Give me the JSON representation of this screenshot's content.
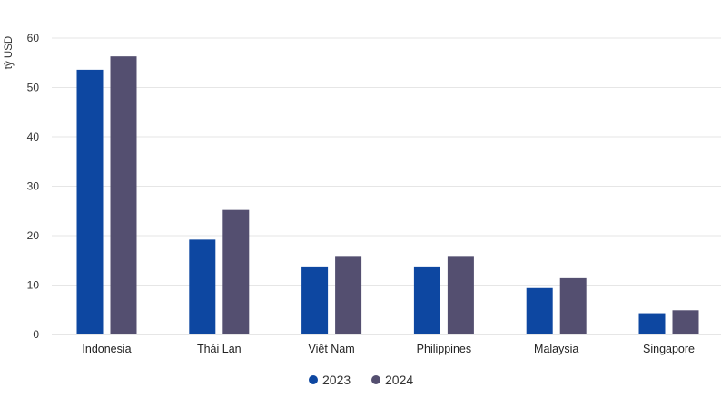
{
  "chart_data": {
    "type": "bar",
    "ylabel": "tỷ USD",
    "ylim": [
      0,
      60
    ],
    "yticks": [
      0,
      10,
      20,
      30,
      40,
      50,
      60
    ],
    "grid": true,
    "legend_position": "bottom-center",
    "categories": [
      "Indonesia",
      "Thái Lan",
      "Việt Nam",
      "Philippines",
      "Malaysia",
      "Singapore"
    ],
    "series": [
      {
        "name": "2023",
        "color": "#0d47a1",
        "values": [
          53.6,
          19.2,
          13.6,
          13.6,
          9.4,
          4.3
        ]
      },
      {
        "name": "2024",
        "color": "#544f70",
        "values": [
          56.3,
          25.2,
          15.9,
          15.9,
          11.4,
          4.9
        ]
      }
    ]
  }
}
